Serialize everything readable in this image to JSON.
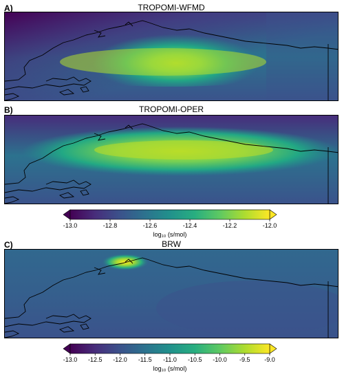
{
  "chart_data": [
    {
      "type": "heatmap",
      "panel": "A)",
      "title": "TROPOMI-WFMD",
      "colormap": "viridis",
      "value_range": [
        -13.0,
        -12.0
      ]
    },
    {
      "type": "heatmap",
      "panel": "B)",
      "title": "TROPOMI-OPER",
      "colormap": "viridis",
      "value_range": [
        -13.0,
        -12.0
      ]
    },
    {
      "type": "heatmap",
      "panel": "C)",
      "title": "BRW",
      "colormap": "viridis",
      "value_range": [
        -13.0,
        -9.0
      ]
    }
  ],
  "colorbars": [
    {
      "ticks": [
        "-13.0",
        "-12.8",
        "-12.6",
        "-12.4",
        "-12.2",
        "-12.0"
      ],
      "tick_values": [
        -13.0,
        -12.8,
        -12.6,
        -12.4,
        -12.2,
        -12.0
      ],
      "range": [
        -13.0,
        -12.0
      ],
      "label": "log₁₀ (s/mol)",
      "extend": "both"
    },
    {
      "ticks": [
        "-13.0",
        "-12.5",
        "-12.0",
        "-11.5",
        "-11.0",
        "-10.5",
        "-10.0",
        "-9.5",
        "-9.0"
      ],
      "tick_values": [
        -13.0,
        -12.5,
        -12.0,
        -11.5,
        -11.0,
        -10.5,
        -10.0,
        -9.5,
        -9.0
      ],
      "range": [
        -13.0,
        -9.0
      ],
      "label": "log₁₀ (s/mol)",
      "extend": "both"
    }
  ],
  "colors": {
    "viridis": [
      "#440154",
      "#472d7b",
      "#3b528b",
      "#2c728e",
      "#21918c",
      "#28ae80",
      "#5ec962",
      "#addc30",
      "#fde725"
    ]
  }
}
